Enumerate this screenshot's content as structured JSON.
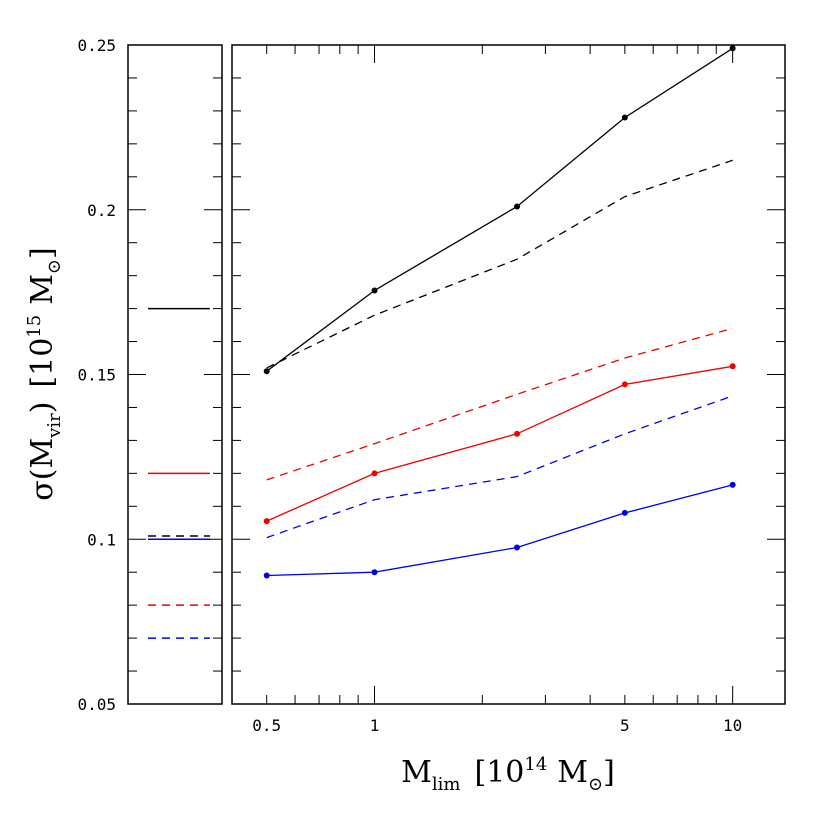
{
  "chart_data": {
    "type": "line",
    "x_scale": "log",
    "xlim": [
      0.4,
      14
    ],
    "ylim": [
      0.05,
      0.25
    ],
    "xticks": [
      {
        "value": 0.5,
        "label": "0.5"
      },
      {
        "value": 1,
        "label": "1"
      },
      {
        "value": 5,
        "label": "5"
      },
      {
        "value": 10,
        "label": "10"
      }
    ],
    "yticks": [
      {
        "value": 0.05,
        "label": "0.05"
      },
      {
        "value": 0.1,
        "label": "0.1"
      },
      {
        "value": 0.15,
        "label": "0.15"
      },
      {
        "value": 0.2,
        "label": "0.2"
      },
      {
        "value": 0.25,
        "label": "0.25"
      }
    ],
    "xlabel": {
      "main": "M",
      "sub": "lim",
      "units": "[10",
      "exp": "14",
      "unit_symbol": "M",
      "unit_sub": "⊙",
      "close": "]"
    },
    "ylabel": {
      "main": "σ(M",
      "sub": "vir",
      "close_paren": ")",
      "units": "[10",
      "exp": "15",
      "unit_symbol": "M",
      "unit_sub": "⊙",
      "close": "]"
    },
    "colors": {
      "black": "#000000",
      "red": "#ee0000",
      "blue": "#0000ee"
    },
    "x": [
      0.5,
      1,
      2.5,
      5,
      10
    ],
    "series": [
      {
        "color": "black",
        "style": "solid",
        "markers": true,
        "values": [
          0.151,
          0.1755,
          0.201,
          0.228,
          0.249
        ]
      },
      {
        "color": "black",
        "style": "dashed",
        "markers": false,
        "values": [
          0.152,
          0.168,
          0.185,
          0.204,
          0.215
        ]
      },
      {
        "color": "red",
        "style": "dashed",
        "markers": false,
        "values": [
          0.118,
          0.129,
          0.144,
          0.155,
          0.164
        ]
      },
      {
        "color": "red",
        "style": "solid",
        "markers": true,
        "values": [
          0.1055,
          0.12,
          0.132,
          0.147,
          0.1525
        ]
      },
      {
        "color": "blue",
        "style": "dashed",
        "markers": false,
        "values": [
          0.1005,
          0.112,
          0.119,
          0.132,
          0.1435
        ]
      },
      {
        "color": "blue",
        "style": "solid",
        "markers": true,
        "values": [
          0.089,
          0.09,
          0.0975,
          0.108,
          0.1165
        ]
      }
    ],
    "reference_levels": [
      {
        "color": "black",
        "style": "solid",
        "value": 0.17
      },
      {
        "color": "red",
        "style": "solid",
        "value": 0.12
      },
      {
        "color": "black",
        "style": "dashed",
        "value": 0.101
      },
      {
        "color": "blue",
        "style": "solid",
        "value": 0.1
      },
      {
        "color": "red",
        "style": "dashed",
        "value": 0.08
      },
      {
        "color": "blue",
        "style": "dashed",
        "value": 0.07
      }
    ]
  }
}
